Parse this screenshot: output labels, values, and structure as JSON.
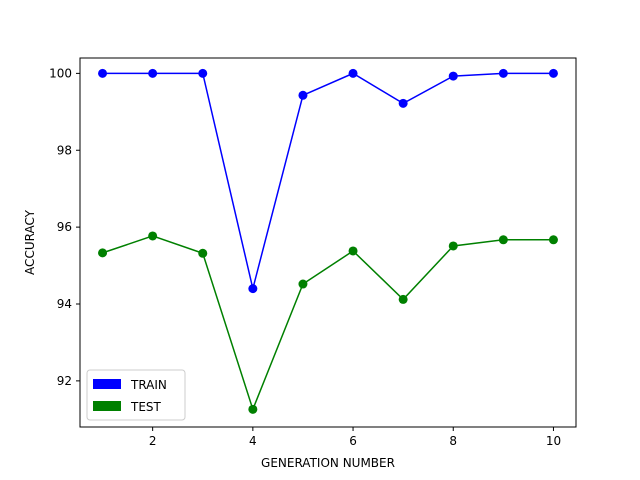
{
  "chart_data": {
    "type": "line",
    "title": "",
    "xlabel": "GENERATION NUMBER",
    "ylabel": "ACCURACY",
    "x": [
      1,
      2,
      3,
      4,
      5,
      6,
      7,
      8,
      9,
      10
    ],
    "xlim": [
      0.55,
      10.45
    ],
    "ylim": [
      90.8,
      100.4
    ],
    "xticks": [
      2,
      4,
      6,
      8,
      10
    ],
    "yticks": [
      92,
      94,
      96,
      98,
      100
    ],
    "grid": false,
    "legend_position": "lower-left",
    "series": [
      {
        "name": "TRAIN",
        "color": "#0000ff",
        "values": [
          100.0,
          100.0,
          100.0,
          94.4,
          99.43,
          100.0,
          99.22,
          99.93,
          100.0,
          100.0
        ]
      },
      {
        "name": "TEST",
        "color": "#008000",
        "values": [
          95.33,
          95.77,
          95.32,
          91.26,
          94.52,
          95.38,
          94.12,
          95.51,
          95.67,
          95.67
        ]
      }
    ]
  }
}
